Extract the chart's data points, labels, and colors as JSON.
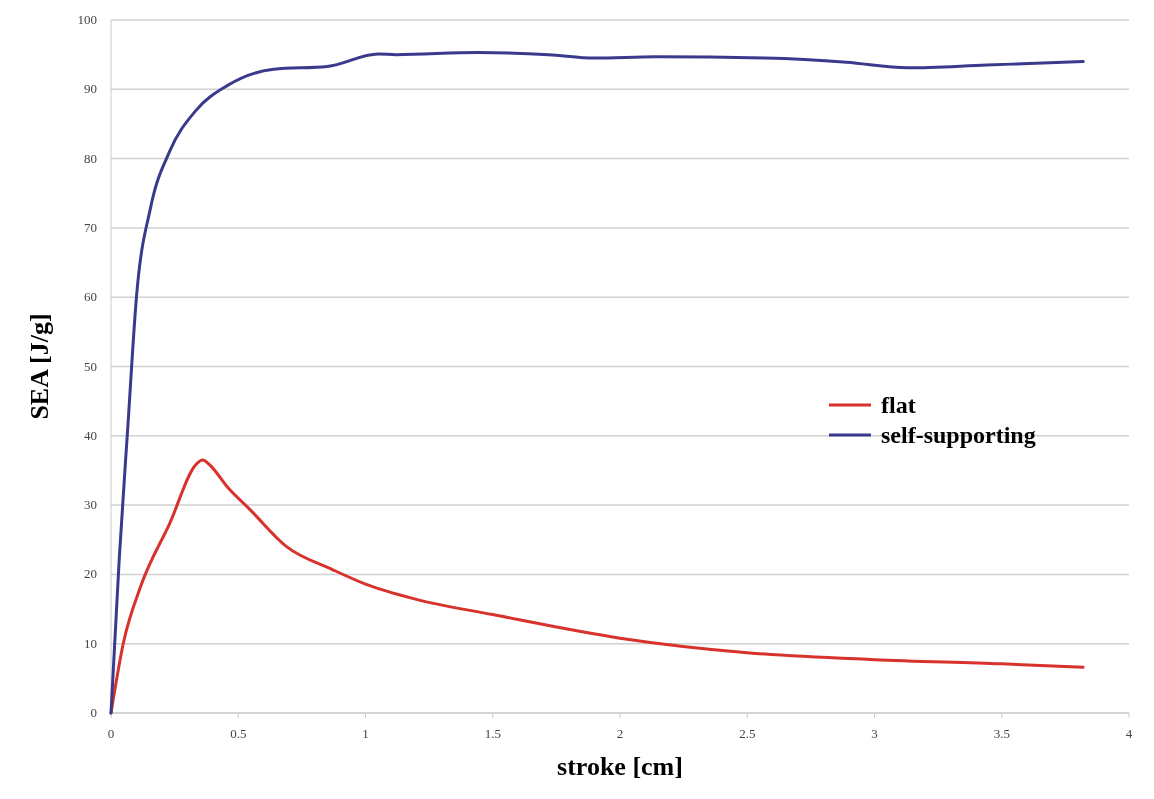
{
  "chart_data": {
    "type": "line",
    "xlabel": "stroke [cm]",
    "ylabel": "SEA [J/g]",
    "xlim": [
      0,
      4
    ],
    "xticks": [
      0,
      0.5,
      1,
      1.5,
      2,
      2.5,
      3,
      3.5,
      4
    ],
    "ylim": [
      0,
      100
    ],
    "yticks": [
      0,
      10,
      20,
      30,
      40,
      50,
      60,
      70,
      80,
      90,
      100
    ],
    "grid": "y",
    "legend": "right",
    "line_style": "solid",
    "marker": "none",
    "series": [
      {
        "name": "flat",
        "color": "#d8322c",
        "x": [
          0,
          0.048,
          0.12,
          0.23,
          0.335,
          0.36,
          0.385,
          0.46,
          0.55,
          0.69,
          0.87,
          1.0,
          1.2,
          1.5,
          2,
          2.5,
          3,
          3.5,
          3.82
        ],
        "values": [
          0,
          10,
          18.6,
          27.3,
          35.9,
          36.5,
          35.9,
          32.5,
          29.2,
          24,
          20.7,
          18.6,
          16.4,
          14.2,
          10.8,
          8.7,
          7.7,
          7.1,
          6.6
        ]
      },
      {
        "name": "self-supporting",
        "color": "#3a3a8c",
        "x": [
          0,
          0.032,
          0.067,
          0.1,
          0.156,
          0.23,
          0.335,
          0.46,
          0.64,
          0.85,
          1.05,
          1.12,
          1.44,
          1.72,
          1.9,
          2.14,
          2.57,
          2.89,
          3.13,
          3.44,
          3.82
        ],
        "values": [
          0,
          22,
          41.8,
          60,
          73,
          81,
          87,
          90.6,
          92.9,
          93.3,
          95.1,
          95,
          95.3,
          95,
          94.5,
          94.7,
          94.5,
          93.9,
          93.1,
          93.5,
          94
        ]
      }
    ]
  }
}
